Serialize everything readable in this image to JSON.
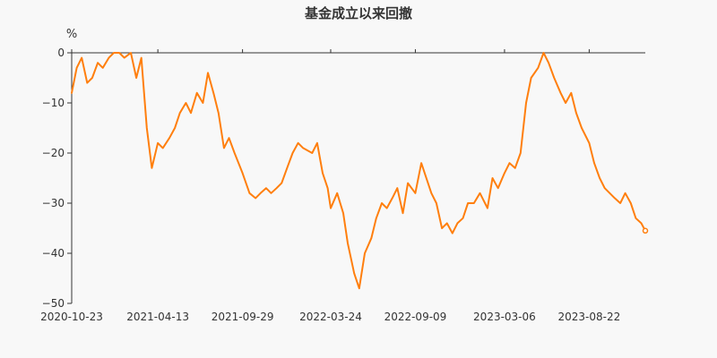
{
  "chart_data": {
    "type": "line",
    "title": "基金成立以来回撤",
    "ylabel": "%",
    "xlabel": "",
    "ylim": [
      -50,
      0
    ],
    "y_ticks": [
      0,
      -10,
      -20,
      -30,
      -40,
      -50
    ],
    "y_tick_labels": [
      "0",
      "−10",
      "−20",
      "−30",
      "−40",
      "−50"
    ],
    "x_tick_labels": [
      "2020-10-23",
      "2021-04-13",
      "2021-09-29",
      "2022-03-24",
      "2022-09-09",
      "2023-03-06",
      "2023-08-22"
    ],
    "grid": false,
    "legend": "none",
    "line_color": "#ff7f0e",
    "series": [
      {
        "x": [
          "2020-10-23",
          "2020-11-02",
          "2020-11-12",
          "2020-11-23",
          "2020-12-03",
          "2020-12-14",
          "2020-12-24",
          "2021-01-05",
          "2021-01-15",
          "2021-01-26",
          "2021-02-05",
          "2021-02-18",
          "2021-03-01",
          "2021-03-11",
          "2021-03-22",
          "2021-04-01",
          "2021-04-13",
          "2021-04-23",
          "2021-05-06",
          "2021-05-17",
          "2021-05-27",
          "2021-06-08",
          "2021-06-18",
          "2021-06-30",
          "2021-07-12",
          "2021-07-22",
          "2021-08-02",
          "2021-08-12",
          "2021-08-23",
          "2021-09-02",
          "2021-09-13",
          "2021-09-29",
          "2021-10-13",
          "2021-10-25",
          "2021-11-04",
          "2021-11-15",
          "2021-11-25",
          "2021-12-06",
          "2021-12-16",
          "2021-12-27",
          "2022-01-07",
          "2022-01-18",
          "2022-01-28",
          "2022-02-15",
          "2022-02-25",
          "2022-03-08",
          "2022-03-18",
          "2022-03-24",
          "2022-04-06",
          "2022-04-18",
          "2022-04-27",
          "2022-05-10",
          "2022-05-20",
          "2022-05-31",
          "2022-06-13",
          "2022-06-23",
          "2022-07-04",
          "2022-07-14",
          "2022-07-25",
          "2022-08-04",
          "2022-08-15",
          "2022-08-25",
          "2022-09-09",
          "2022-09-21",
          "2022-10-11",
          "2022-10-21",
          "2022-11-01",
          "2022-11-11",
          "2022-11-22",
          "2022-12-02",
          "2022-12-13",
          "2022-12-23",
          "2023-01-04",
          "2023-01-16",
          "2023-01-31",
          "2023-02-10",
          "2023-02-21",
          "2023-03-06",
          "2023-03-16",
          "2023-03-27",
          "2023-04-07",
          "2023-04-18",
          "2023-04-28",
          "2023-05-12",
          "2023-05-23",
          "2023-06-02",
          "2023-06-13",
          "2023-06-26",
          "2023-07-06",
          "2023-07-17",
          "2023-07-27",
          "2023-08-07",
          "2023-08-22",
          "2023-09-01",
          "2023-09-12",
          "2023-09-22",
          "2023-10-12",
          "2023-10-23",
          "2023-11-02",
          "2023-11-13",
          "2023-11-23",
          "2023-12-04",
          "2023-12-12"
        ],
        "y": [
          -8,
          -3,
          -1,
          -6,
          -5,
          -2,
          -3,
          -1,
          0,
          0,
          -1,
          0,
          -5,
          -1,
          -15,
          -23,
          -18,
          -19,
          -17,
          -15,
          -12,
          -10,
          -12,
          -8,
          -10,
          -4,
          -8,
          -12,
          -19,
          -17,
          -20,
          -24,
          -28,
          -29,
          -28,
          -27,
          -28,
          -27,
          -26,
          -23,
          -20,
          -18,
          -19,
          -20,
          -18,
          -24,
          -27,
          -31,
          -28,
          -32,
          -38,
          -44,
          -47,
          -40,
          -37,
          -33,
          -30,
          -31,
          -29,
          -27,
          -32,
          -26,
          -28,
          -22,
          -28,
          -30,
          -35,
          -34,
          -36,
          -34,
          -33,
          -30,
          -30,
          -28,
          -31,
          -25,
          -27,
          -24,
          -22,
          -23,
          -20,
          -10,
          -5,
          -3,
          0,
          -2,
          -5,
          -8,
          -10,
          -8,
          -12,
          -15,
          -18,
          -22,
          -25,
          -27,
          -29,
          -30,
          -28,
          -30,
          -33,
          -34,
          -35.5
        ]
      }
    ]
  }
}
